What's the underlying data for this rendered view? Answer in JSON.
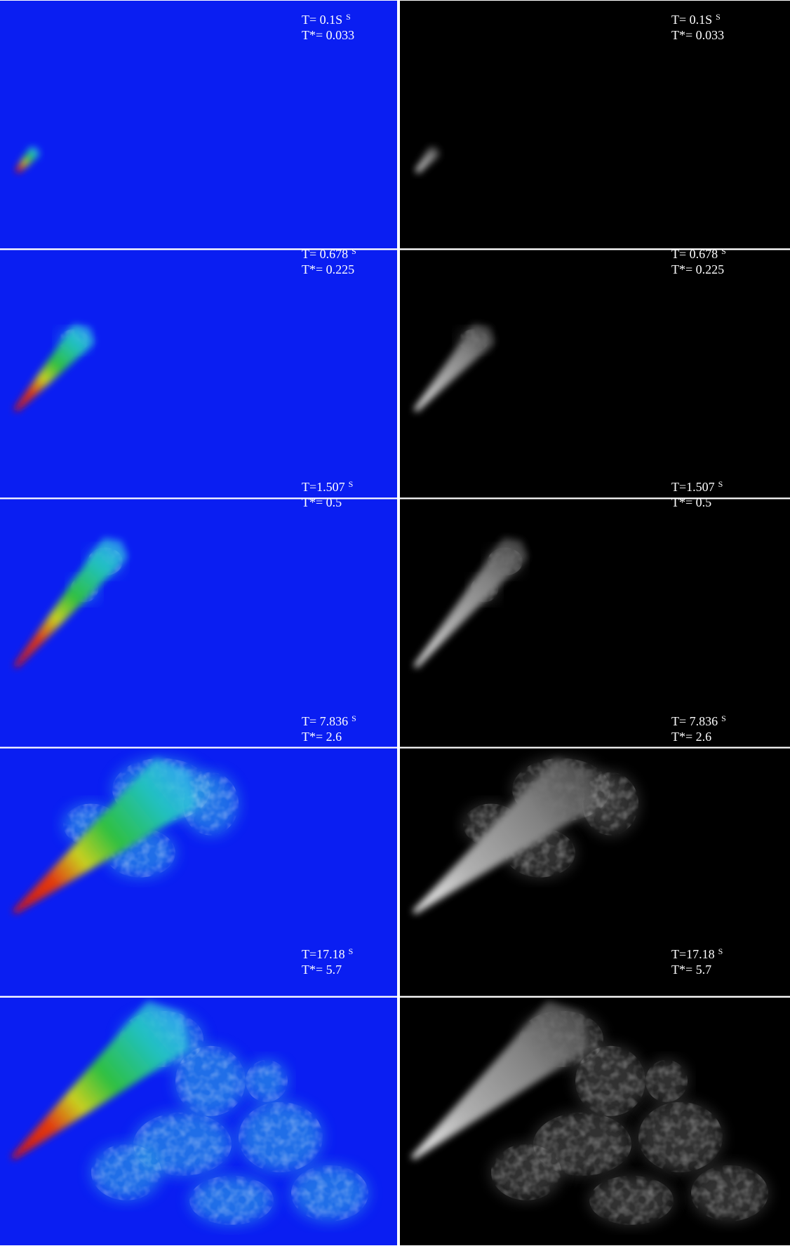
{
  "panels": [
    {
      "time": "T= 0.1S",
      "unit": "S",
      "t_star": "T*= 0.033"
    },
    {
      "time": "T= 0.678",
      "unit": "S",
      "t_star": "T*= 0.225"
    },
    {
      "time": "T=1.507",
      "unit": "S",
      "t_star": "T*= 0.5"
    },
    {
      "time": "T= 7.836",
      "unit": "S",
      "t_star": "T*= 2.6"
    },
    {
      "time": "T=17.18",
      "unit": "S",
      "t_star": "T*= 5.7"
    }
  ]
}
